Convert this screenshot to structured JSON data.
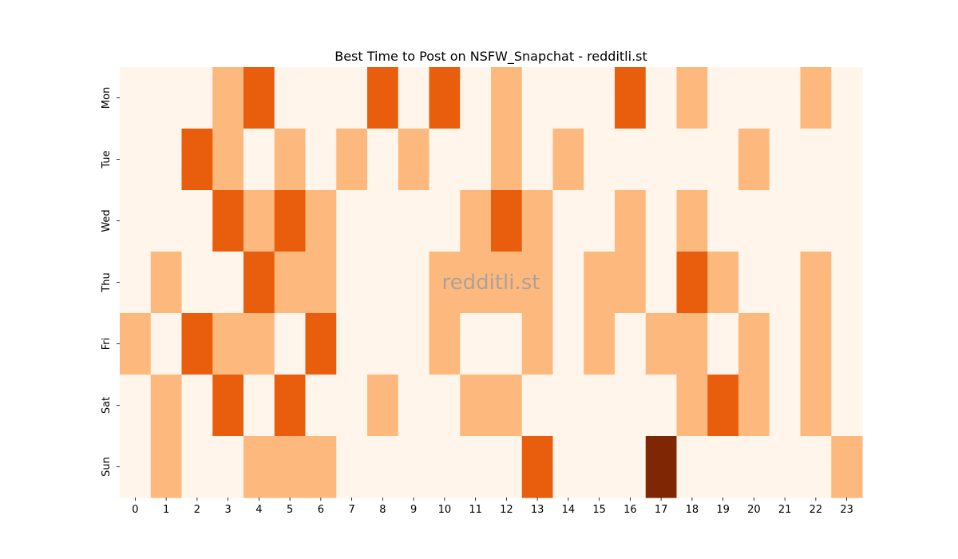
{
  "chart_data": {
    "type": "heatmap",
    "title": "Best Time to Post on NSFW_Snapchat - redditli.st",
    "watermark": "redditli.st",
    "xlabel": "",
    "ylabel": "",
    "x_categories": [
      "0",
      "1",
      "2",
      "3",
      "4",
      "5",
      "6",
      "7",
      "8",
      "9",
      "10",
      "11",
      "12",
      "13",
      "14",
      "15",
      "16",
      "17",
      "18",
      "19",
      "20",
      "21",
      "22",
      "23"
    ],
    "y_categories": [
      "Mon",
      "Tue",
      "Wed",
      "Thu",
      "Fri",
      "Sat",
      "Sun"
    ],
    "values": [
      [
        0,
        0,
        0,
        1,
        2,
        0,
        0,
        0,
        2,
        0,
        2,
        0,
        1,
        0,
        0,
        0,
        2,
        0,
        1,
        0,
        0,
        0,
        1,
        0
      ],
      [
        0,
        0,
        2,
        1,
        0,
        1,
        0,
        1,
        0,
        1,
        0,
        0,
        1,
        0,
        1,
        0,
        0,
        0,
        0,
        0,
        1,
        0,
        0,
        0
      ],
      [
        0,
        0,
        0,
        2,
        1,
        2,
        1,
        0,
        0,
        0,
        0,
        1,
        2,
        1,
        0,
        0,
        1,
        0,
        1,
        0,
        0,
        0,
        0,
        0
      ],
      [
        0,
        1,
        0,
        0,
        2,
        1,
        1,
        0,
        0,
        0,
        1,
        1,
        1,
        1,
        0,
        1,
        1,
        0,
        2,
        1,
        0,
        0,
        1,
        0
      ],
      [
        1,
        0,
        2,
        1,
        1,
        0,
        2,
        0,
        0,
        0,
        1,
        0,
        0,
        1,
        0,
        1,
        0,
        1,
        1,
        0,
        1,
        0,
        1,
        0
      ],
      [
        0,
        1,
        0,
        2,
        0,
        2,
        0,
        0,
        1,
        0,
        0,
        1,
        1,
        0,
        0,
        0,
        0,
        0,
        1,
        2,
        1,
        0,
        1,
        0
      ],
      [
        0,
        1,
        0,
        0,
        1,
        1,
        1,
        0,
        0,
        0,
        0,
        0,
        0,
        2,
        0,
        0,
        0,
        3,
        0,
        0,
        0,
        0,
        0,
        1
      ]
    ],
    "value_range": [
      0,
      3
    ],
    "colormap": {
      "name": "Oranges",
      "levels": [
        "#fff5eb",
        "#fdb97d",
        "#e95e0d",
        "#7f2704"
      ]
    },
    "colorbar": false,
    "grid": false,
    "watermark_color": "#9e9e9e"
  }
}
